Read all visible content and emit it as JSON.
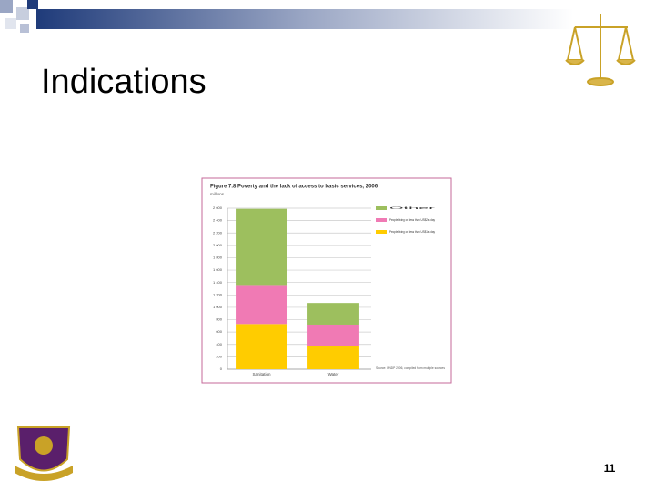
{
  "slide": {
    "title": "Indications",
    "page_number": "11"
  },
  "chart_data": {
    "type": "bar",
    "stacked": true,
    "title": "Figure 7.8 Poverty and the lack of access to basic services, 2006",
    "y_label": "millions",
    "categories": [
      "Sanitation",
      "Water"
    ],
    "series": [
      {
        "name": "People living on less than US$1 a day",
        "color": "#ffcc00",
        "values": [
          730,
          380
        ]
      },
      {
        "name": "People living on less than US$2 a day",
        "color": "#f07ab4",
        "values": [
          630,
          340
        ]
      },
      {
        "name": "Other",
        "color": "#9dbf5e",
        "values": [
          1230,
          350
        ]
      }
    ],
    "legend_order": [
      2,
      1,
      0
    ],
    "ylim": [
      0,
      2600
    ],
    "yticks": [
      0,
      200,
      400,
      600,
      800,
      {
        "value": 1000,
        "label": "1 000"
      },
      {
        "value": 1200,
        "label": "1 200"
      },
      {
        "value": 1400,
        "label": "1 400"
      },
      {
        "value": 1600,
        "label": "1 600"
      },
      {
        "value": 1800,
        "label": "1 800"
      },
      {
        "value": 2000,
        "label": "2 000"
      },
      {
        "value": 2200,
        "label": "2 200"
      },
      {
        "value": 2400,
        "label": "2 400"
      },
      {
        "value": 2600,
        "label": "2 600"
      }
    ],
    "grid": true,
    "source": "Source: UNDP 2006, compiled from multiple sources"
  }
}
